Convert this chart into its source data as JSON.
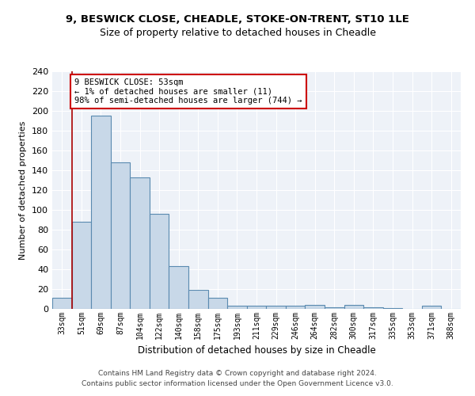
{
  "title1": "9, BESWICK CLOSE, CHEADLE, STOKE-ON-TRENT, ST10 1LE",
  "title2": "Size of property relative to detached houses in Cheadle",
  "xlabel": "Distribution of detached houses by size in Cheadle",
  "ylabel": "Number of detached properties",
  "bar_labels": [
    "33sqm",
    "51sqm",
    "69sqm",
    "87sqm",
    "104sqm",
    "122sqm",
    "140sqm",
    "158sqm",
    "175sqm",
    "193sqm",
    "211sqm",
    "229sqm",
    "246sqm",
    "264sqm",
    "282sqm",
    "300sqm",
    "317sqm",
    "335sqm",
    "353sqm",
    "371sqm",
    "388sqm"
  ],
  "bar_values": [
    11,
    88,
    195,
    148,
    133,
    96,
    43,
    19,
    11,
    3,
    3,
    3,
    3,
    4,
    2,
    4,
    2,
    1,
    0,
    3,
    0
  ],
  "bar_color": "#c8d8e8",
  "bar_edge_color": "#5a8ab0",
  "vline_x": 0.5,
  "vline_color": "#aa0000",
  "annotation_text": "9 BESWICK CLOSE: 53sqm\n← 1% of detached houses are smaller (11)\n98% of semi-detached houses are larger (744) →",
  "annotation_box_color": "white",
  "annotation_box_edge": "#cc0000",
  "ylim": [
    0,
    240
  ],
  "yticks": [
    0,
    20,
    40,
    60,
    80,
    100,
    120,
    140,
    160,
    180,
    200,
    220,
    240
  ],
  "bg_color": "#eef2f8",
  "footer1": "Contains HM Land Registry data © Crown copyright and database right 2024.",
  "footer2": "Contains public sector information licensed under the Open Government Licence v3.0."
}
